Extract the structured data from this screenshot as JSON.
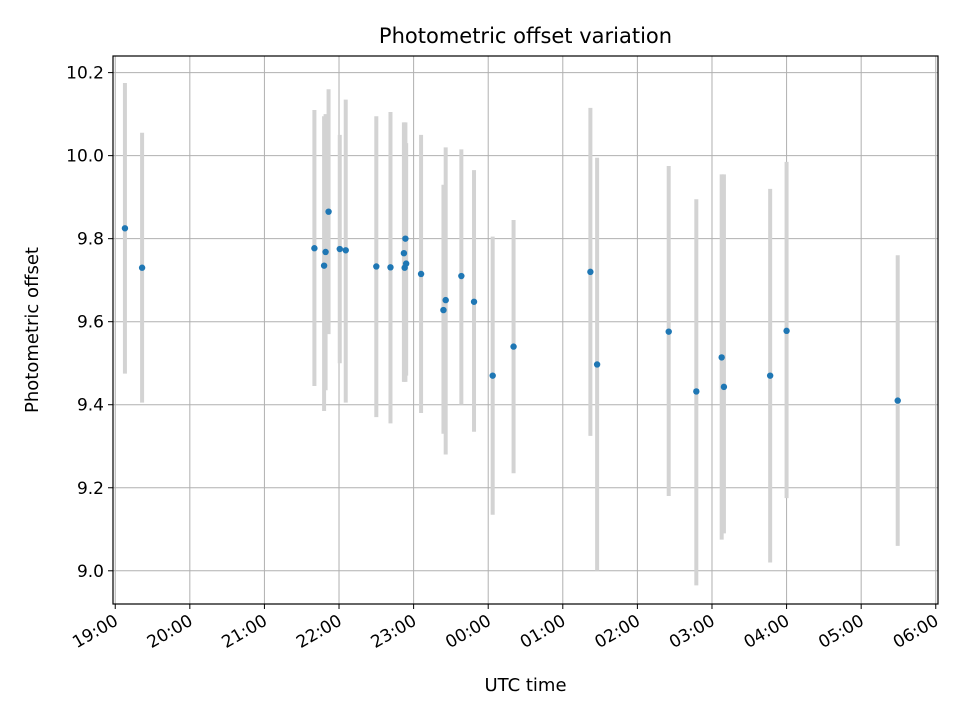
{
  "chart_data": {
    "type": "scatter",
    "title": "Photometric offset variation",
    "xlabel": "UTC time",
    "ylabel": "Photometric offset",
    "grid": true,
    "legend": "none",
    "x_ticks": [
      "19:00",
      "20:00",
      "21:00",
      "22:00",
      "23:00",
      "00:00",
      "01:00",
      "02:00",
      "03:00",
      "04:00",
      "05:00",
      "06:00"
    ],
    "y_ticks": [
      "9.0",
      "9.2",
      "9.4",
      "9.6",
      "9.8",
      "10.0",
      "10.2"
    ],
    "xlim": [
      18.97,
      30.03
    ],
    "ylim": [
      8.92,
      10.24
    ],
    "colors": {
      "point": "#1f77b4",
      "errorbar": "#d3d3d3",
      "grid": "#b0b0b0"
    },
    "series": [
      {
        "x": [
          19.13,
          19.36,
          21.67,
          21.8,
          21.82,
          21.86,
          22.01,
          22.09,
          22.5,
          22.69,
          22.87,
          22.88,
          22.89,
          22.9,
          23.1,
          23.4,
          23.43,
          23.64,
          23.81,
          24.06,
          24.34,
          25.37,
          25.46,
          26.42,
          26.79,
          27.13,
          27.16,
          27.78,
          28.0,
          29.49
        ],
        "y": [
          9.825,
          9.73,
          9.777,
          9.735,
          9.768,
          9.865,
          9.775,
          9.772,
          9.733,
          9.731,
          9.765,
          9.73,
          9.8,
          9.74,
          9.715,
          9.628,
          9.652,
          9.71,
          9.648,
          9.47,
          9.54,
          9.72,
          9.497,
          9.576,
          9.432,
          9.514,
          9.443,
          9.47,
          9.578,
          9.41
        ],
        "yerr_low": [
          9.475,
          9.405,
          9.445,
          9.385,
          9.435,
          9.57,
          9.5,
          9.405,
          9.37,
          9.355,
          9.455,
          9.465,
          9.455,
          9.47,
          9.38,
          9.33,
          9.28,
          9.4,
          9.335,
          9.135,
          9.235,
          9.325,
          9.0,
          9.18,
          8.965,
          9.075,
          9.09,
          9.02,
          9.175,
          9.06
        ],
        "yerr_high": [
          10.175,
          10.055,
          10.11,
          10.095,
          10.1,
          10.16,
          10.05,
          10.135,
          10.095,
          10.105,
          10.08,
          10.04,
          10.08,
          10.03,
          10.05,
          9.93,
          10.02,
          10.015,
          9.965,
          9.805,
          9.845,
          10.115,
          9.995,
          9.975,
          9.895,
          9.955,
          9.955,
          9.92,
          9.985,
          9.76
        ]
      }
    ]
  }
}
